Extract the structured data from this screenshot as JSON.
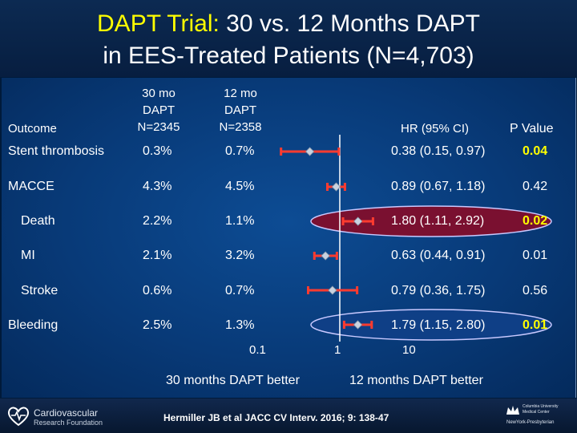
{
  "title": {
    "highlight": "DAPT Trial:",
    "rest_line1": " 30 vs. 12 Months DAPT",
    "line2": "in EES-Treated Patients (N=4,703)"
  },
  "headers": {
    "outcome": "Outcome",
    "col30": [
      "30 mo",
      "DAPT",
      "N=2345"
    ],
    "col12": [
      "12 mo",
      "DAPT",
      "N=2358"
    ],
    "hr": "HR (95% CI)",
    "pvalue": "P Value"
  },
  "rows": [
    {
      "label": "Stent thrombosis",
      "v30": "0.3%",
      "v12": "0.7%",
      "hr_text": "0.38 (0.15, 0.97)",
      "p": "0.04",
      "p_sig": true,
      "highlight": false
    },
    {
      "label": "MACCE",
      "v30": "4.3%",
      "v12": "4.5%",
      "hr_text": "0.89 (0.67, 1.18)",
      "p": "0.42",
      "p_sig": false,
      "highlight": false
    },
    {
      "label": "Death",
      "v30": "2.2%",
      "v12": "1.1%",
      "hr_text": "1.80 (1.11, 2.92)",
      "p": "0.02",
      "p_sig": true,
      "highlight": true
    },
    {
      "label": "MI",
      "v30": "2.1%",
      "v12": "3.2%",
      "hr_text": "0.63 (0.44, 0.91)",
      "p": "0.01",
      "p_sig": false,
      "highlight": false
    },
    {
      "label": "Stroke",
      "v30": "0.6%",
      "v12": "0.7%",
      "hr_text": "0.79 (0.36, 1.75)",
      "p": "0.56",
      "p_sig": false,
      "highlight": false
    },
    {
      "label": "Bleeding",
      "v30": "2.5%",
      "v12": "1.3%",
      "hr_text": "1.79 (1.15, 2.80)",
      "p": "0.01",
      "p_sig": true,
      "highlight": true
    }
  ],
  "chart_data": {
    "type": "scatter",
    "title": "DAPT Trial: 30 vs. 12 Months DAPT in EES-Treated Patients (N=4,703)",
    "xscale": "log",
    "xlim": [
      0.1,
      10
    ],
    "xticks": [
      "0.1",
      "1",
      "10"
    ],
    "categories": [
      "Stent thrombosis",
      "MACCE",
      "Death",
      "MI",
      "Stroke",
      "Bleeding"
    ],
    "hr": [
      0.38,
      0.89,
      1.8,
      0.63,
      0.79,
      1.79
    ],
    "ci_low": [
      0.15,
      0.67,
      1.11,
      0.44,
      0.36,
      1.15
    ],
    "ci_high": [
      0.97,
      1.18,
      2.92,
      0.91,
      1.75,
      2.8
    ],
    "left_label": "30 months DAPT better",
    "right_label": "12 months DAPT better",
    "colors": {
      "ci": "#ff3b2f",
      "point": "#c8d2e0",
      "ref": "#ffffff",
      "oval_fill": "#7a1030",
      "oval_stroke": "#c9c9ff"
    }
  },
  "footer": {
    "citation": "Hermiller JB et al JACC CV Interv. 2016; 9: 138-47",
    "logo_left_line1": "Cardiovascular",
    "logo_left_line2": "Research Foundation",
    "logo_right_line1": "Columbia University",
    "logo_right_line2": "Medical Center",
    "logo_right_line3": "NewYork-Presbyterian"
  }
}
